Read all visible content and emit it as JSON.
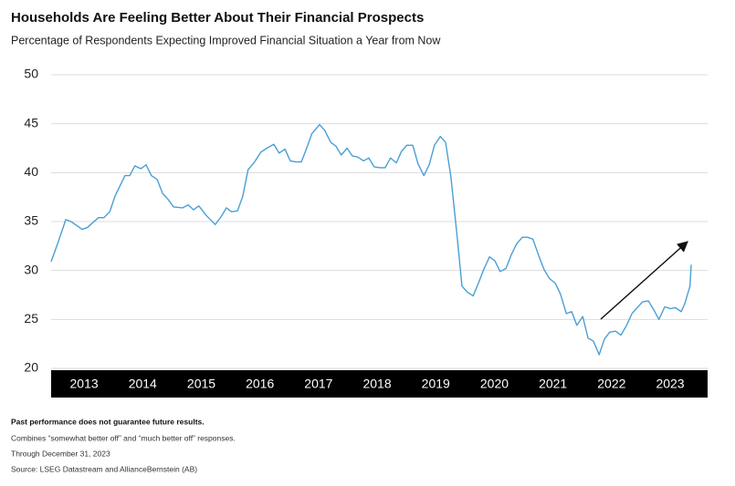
{
  "chart_data": {
    "type": "line",
    "title": "Households Are Feeling Better About Their Financial Prospects",
    "subtitle": "Percentage of Respondents Expecting Improved Financial Situation a Year from Now",
    "x": [
      2013.0,
      2013.12,
      2013.25,
      2013.34,
      2013.53,
      2013.62,
      2013.75,
      2013.81,
      2013.9,
      2014.0,
      2014.09,
      2014.26,
      2014.34,
      2014.43,
      2014.53,
      2014.62,
      2014.71,
      2014.81,
      2014.9,
      2014.99,
      2015.09,
      2015.24,
      2015.34,
      2015.43,
      2015.52,
      2015.65,
      2015.8,
      2015.9,
      2015.99,
      2016.08,
      2016.18,
      2016.27,
      2016.36,
      2016.46,
      2016.58,
      2016.68,
      2016.8,
      2016.89,
      2016.99,
      2017.08,
      2017.17,
      2017.27,
      2017.36,
      2017.45,
      2017.58,
      2017.67,
      2017.77,
      2017.86,
      2017.95,
      2018.05,
      2018.14,
      2018.23,
      2018.33,
      2018.42,
      2018.51,
      2018.61,
      2018.7,
      2018.79,
      2018.89,
      2018.98,
      2019.07,
      2019.17,
      2019.26,
      2019.36,
      2019.45,
      2019.54,
      2019.64,
      2019.73,
      2019.82,
      2019.92,
      2020.01,
      2020.1,
      2020.2,
      2020.29,
      2020.38,
      2020.48,
      2020.57,
      2020.66,
      2020.76,
      2020.85,
      2020.94,
      2021.04,
      2021.13,
      2021.22,
      2021.32,
      2021.41,
      2021.5,
      2021.6,
      2021.69,
      2021.79,
      2021.88,
      2021.97,
      2022.07,
      2022.16,
      2022.25,
      2022.35,
      2022.44,
      2022.53,
      2022.63,
      2022.72,
      2022.81,
      2022.91,
      2023.0,
      2023.09,
      2023.19,
      2023.28,
      2023.37,
      2023.47,
      2023.56,
      2023.65,
      2023.75,
      2023.81,
      2023.9,
      2023.92
    ],
    "series": [
      {
        "color": "#4a9fd6",
        "values": [
          30.9,
          32.9,
          35.2,
          35.0,
          34.2,
          34.4,
          35.1,
          35.4,
          35.4,
          36.0,
          37.6,
          39.7,
          39.7,
          40.7,
          40.4,
          40.8,
          39.7,
          39.3,
          37.9,
          37.3,
          36.5,
          36.4,
          36.7,
          36.2,
          36.6,
          35.6,
          34.7,
          35.5,
          36.4,
          36.0,
          36.1,
          37.6,
          40.3,
          41.0,
          42.1,
          42.5,
          42.9,
          42.0,
          42.4,
          41.2,
          41.1,
          41.1,
          42.5,
          44.0,
          44.9,
          44.3,
          43.1,
          42.7,
          41.8,
          42.5,
          41.7,
          41.6,
          41.2,
          41.5,
          40.6,
          40.5,
          40.5,
          41.5,
          41.0,
          42.2,
          42.8,
          42.8,
          40.9,
          39.7,
          40.8,
          42.8,
          43.7,
          43.1,
          39.6,
          33.9,
          28.4,
          27.8,
          27.4,
          28.7,
          30.1,
          31.4,
          31.0,
          29.9,
          30.2,
          31.6,
          32.7,
          33.4,
          33.4,
          33.2,
          31.5,
          30.1,
          29.2,
          28.7,
          27.6,
          25.6,
          25.8,
          24.4,
          25.3,
          23.1,
          22.8,
          21.4,
          23.0,
          23.7,
          23.8,
          23.4,
          24.3,
          25.6,
          26.2,
          26.8,
          26.9,
          26.0,
          25.0,
          26.3,
          26.1,
          26.2,
          25.8,
          26.6,
          28.4,
          30.6
        ]
      }
    ],
    "xlim": [
      2013,
      2023.92
    ],
    "xticks": [
      2013,
      2014,
      2015,
      2016,
      2017,
      2018,
      2019,
      2020,
      2021,
      2022,
      2023
    ],
    "ylim": [
      20,
      50
    ],
    "yticks": [
      20,
      25,
      30,
      35,
      40,
      45,
      50
    ],
    "grid": true,
    "notes": [
      "Past performance does not guarantee future results.",
      "Combines “somewhat better off” and “much better off” responses.",
      "Through December 31, 2023",
      "Source: LSEG Datastream and AllianceBernstein (AB)"
    ]
  }
}
